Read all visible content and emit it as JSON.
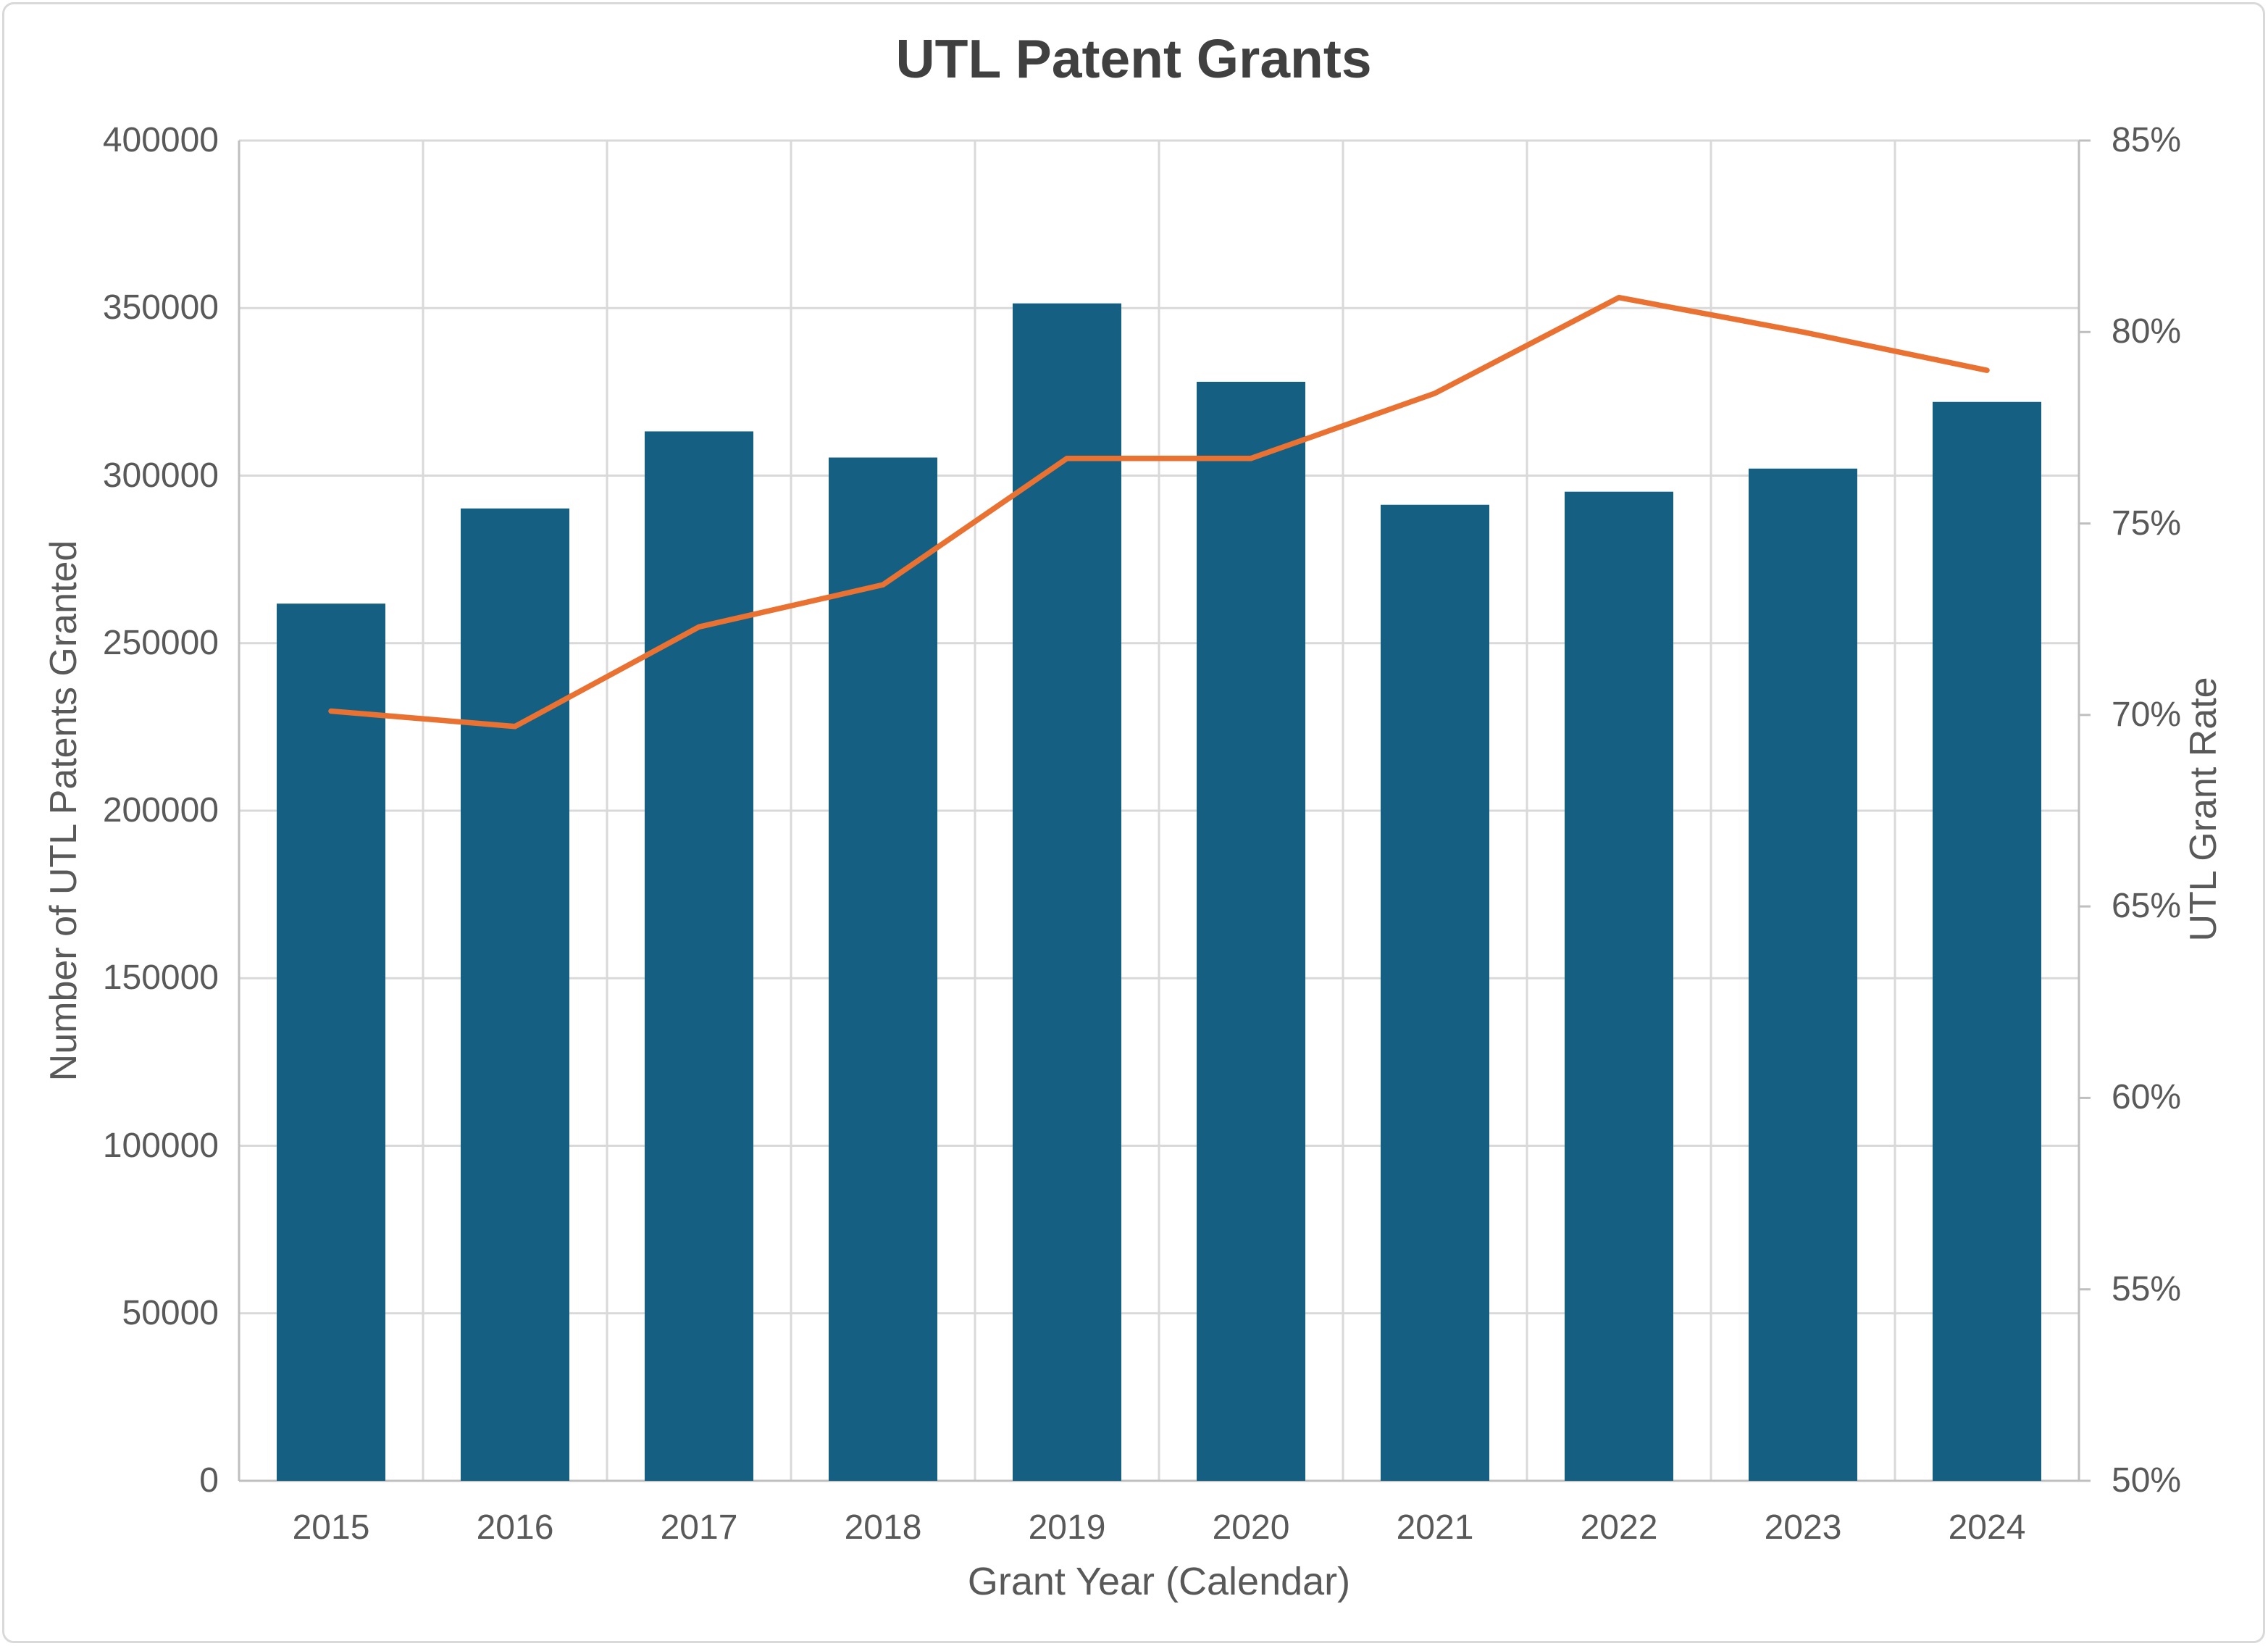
{
  "page": {
    "background": "#FFFFFF"
  },
  "chart_data": {
    "type": "combo",
    "title": "UTL Patent Grants",
    "categories": [
      "2015",
      "2016",
      "2017",
      "2018",
      "2019",
      "2020",
      "2021",
      "2022",
      "2023",
      "2024"
    ],
    "series": [
      {
        "name": "UTL Patents Granted",
        "type": "bar",
        "axis": "left",
        "color": "#156082",
        "values": [
          261800,
          290200,
          313200,
          305400,
          351400,
          328000,
          291300,
          295200,
          302100,
          322000
        ]
      },
      {
        "name": "UTL Grant Rate",
        "type": "line",
        "axis": "right",
        "color": "#E97132",
        "values": [
          70.1,
          69.7,
          72.3,
          73.4,
          76.7,
          76.7,
          78.4,
          80.9,
          80.0,
          79.0
        ]
      }
    ],
    "x_axis": {
      "title": "Grant Year (Calendar)",
      "labels": [
        "2015",
        "2016",
        "2017",
        "2018",
        "2019",
        "2020",
        "2021",
        "2022",
        "2023",
        "2024"
      ]
    },
    "left_axis": {
      "title": "Number of UTL Patents Granted",
      "min": 0,
      "max": 400000,
      "step": 50000,
      "tick_labels": [
        "0",
        "50000",
        "100000",
        "150000",
        "200000",
        "250000",
        "300000",
        "350000",
        "400000"
      ]
    },
    "right_axis": {
      "title": "UTL Grant Rate",
      "min": 50,
      "max": 85,
      "step": 5,
      "tick_labels": [
        "50%",
        "55%",
        "60%",
        "65%",
        "70%",
        "75%",
        "80%",
        "85%"
      ]
    },
    "legend": "none",
    "grid": true
  },
  "colors": {
    "bar": "#156082",
    "line": "#E97132",
    "text": "#595959",
    "title_text": "#404040",
    "gridline": "#D9D9D9",
    "axis_line": "#BFBFBF",
    "border": "#D9D9D9",
    "background": "#FFFFFF"
  }
}
